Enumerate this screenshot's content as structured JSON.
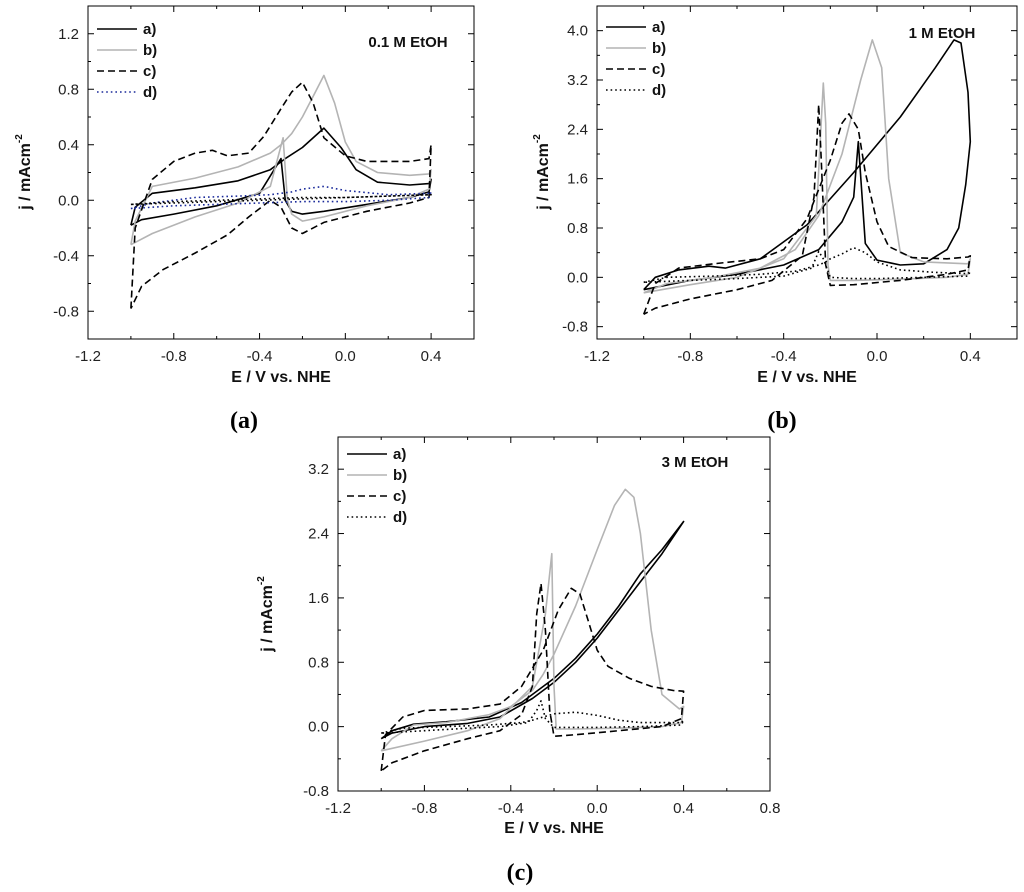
{
  "colors": {
    "black": "#000000",
    "gray": "#b4b4b4",
    "blue": "#1a2a9a"
  },
  "chart_data": [
    {
      "type": "line",
      "caption": "(a)",
      "annotation": "0.1 M EtOH",
      "xlabel": "E / V vs. NHE",
      "ylabel_main": "j /  mAcm",
      "ylabel_sup": "-2",
      "xlim": [
        -1.2,
        0.6
      ],
      "ylim": [
        -1.0,
        1.4
      ],
      "xticks": [
        -1.2,
        -0.8,
        -0.4,
        0.0,
        0.4
      ],
      "xtick_labels": [
        "-1.2",
        "-0.8",
        "-0.4",
        "0.0",
        "0.4"
      ],
      "yticks": [
        -0.8,
        -0.4,
        0.0,
        0.4,
        0.8,
        1.2
      ],
      "ytick_labels": [
        "-0.8",
        "-0.4",
        "0.0",
        "0.4",
        "0.8",
        "1.2"
      ],
      "series": [
        {
          "name": "a)",
          "style": "solid",
          "color": "black",
          "x": [
            -1.0,
            -0.98,
            -0.9,
            -0.7,
            -0.5,
            -0.35,
            -0.28,
            -0.2,
            -0.1,
            -0.02,
            0.05,
            0.15,
            0.3,
            0.39,
            0.4,
            0.39,
            0.3,
            0.1,
            -0.1,
            -0.2,
            -0.25,
            -0.28,
            -0.3,
            -0.4,
            -0.6,
            -0.8,
            -0.95,
            -1.0
          ],
          "y": [
            -0.18,
            -0.05,
            0.05,
            0.09,
            0.14,
            0.22,
            0.3,
            0.38,
            0.52,
            0.38,
            0.22,
            0.13,
            0.11,
            0.12,
            0.15,
            0.06,
            0.02,
            -0.03,
            -0.08,
            -0.1,
            -0.08,
            0.0,
            0.3,
            0.05,
            -0.04,
            -0.1,
            -0.14,
            -0.18
          ]
        },
        {
          "name": "b)",
          "style": "solid",
          "color": "gray",
          "x": [
            -1.0,
            -0.98,
            -0.9,
            -0.7,
            -0.5,
            -0.35,
            -0.3,
            -0.25,
            -0.2,
            -0.15,
            -0.1,
            -0.05,
            0.0,
            0.05,
            0.15,
            0.3,
            0.39,
            0.4,
            0.39,
            0.3,
            0.1,
            -0.1,
            -0.2,
            -0.25,
            -0.27,
            -0.29,
            -0.35,
            -0.5,
            -0.7,
            -0.9,
            -1.0
          ],
          "y": [
            -0.32,
            -0.15,
            0.1,
            0.16,
            0.24,
            0.34,
            0.4,
            0.48,
            0.6,
            0.75,
            0.9,
            0.7,
            0.42,
            0.28,
            0.2,
            0.18,
            0.19,
            0.22,
            0.08,
            0.02,
            -0.04,
            -0.12,
            -0.15,
            -0.1,
            0.0,
            0.45,
            0.1,
            -0.02,
            -0.12,
            -0.24,
            -0.32
          ]
        },
        {
          "name": "c)",
          "style": "dashed",
          "color": "black",
          "x": [
            -1.0,
            -0.98,
            -0.9,
            -0.8,
            -0.7,
            -0.62,
            -0.55,
            -0.45,
            -0.38,
            -0.3,
            -0.25,
            -0.2,
            -0.15,
            -0.1,
            0.0,
            0.1,
            0.3,
            0.39,
            0.4,
            0.39,
            0.3,
            0.1,
            -0.1,
            -0.2,
            -0.25,
            -0.3,
            -0.35,
            -0.45,
            -0.55,
            -0.7,
            -0.85,
            -0.95,
            -1.0
          ],
          "y": [
            -0.78,
            -0.2,
            0.15,
            0.28,
            0.34,
            0.36,
            0.32,
            0.34,
            0.46,
            0.66,
            0.78,
            0.85,
            0.7,
            0.45,
            0.32,
            0.28,
            0.28,
            0.3,
            0.4,
            0.02,
            -0.02,
            -0.08,
            -0.16,
            -0.24,
            -0.2,
            -0.05,
            0.0,
            -0.12,
            -0.25,
            -0.38,
            -0.5,
            -0.62,
            -0.78
          ]
        },
        {
          "name": "d)",
          "style": "dotted",
          "color": "blue",
          "x": [
            -1.0,
            -0.9,
            -0.7,
            -0.5,
            -0.35,
            -0.25,
            -0.2,
            -0.1,
            0.0,
            0.2,
            0.39,
            0.4,
            0.39,
            0.2,
            0.0,
            -0.2,
            -0.4,
            -0.6,
            -0.8,
            -1.0
          ],
          "y": [
            -0.06,
            -0.02,
            0.02,
            0.03,
            0.04,
            0.06,
            0.08,
            0.1,
            0.07,
            0.04,
            0.05,
            0.06,
            0.02,
            0.0,
            -0.01,
            -0.01,
            -0.02,
            -0.03,
            -0.04,
            -0.06
          ]
        },
        {
          "name": "",
          "style": "dotted",
          "color": "black",
          "x": [
            -1.0,
            -0.8,
            -0.6,
            -0.4,
            -0.2,
            0.0,
            0.2,
            0.4,
            0.2,
            0.0,
            -0.2,
            -0.4,
            -0.6,
            -0.8,
            -1.0
          ],
          "y": [
            -0.03,
            -0.01,
            0.0,
            0.01,
            0.02,
            0.02,
            0.03,
            0.04,
            0.03,
            0.02,
            0.01,
            0.0,
            -0.01,
            -0.02,
            -0.03
          ]
        }
      ]
    },
    {
      "type": "line",
      "caption": "(b)",
      "annotation": "1 M EtOH",
      "xlabel": "E / V vs. NHE",
      "ylabel_main": "j /  mAcm",
      "ylabel_sup": "-2",
      "xlim": [
        -1.2,
        0.6
      ],
      "ylim": [
        -1.0,
        4.4
      ],
      "xticks": [
        -1.2,
        -0.8,
        -0.4,
        0.0,
        0.4
      ],
      "xtick_labels": [
        "-1.2",
        "-0.8",
        "-0.4",
        "0.0",
        "0.4"
      ],
      "yticks": [
        -0.8,
        0.0,
        0.8,
        1.6,
        2.4,
        3.2,
        4.0
      ],
      "ytick_labels": [
        "-0.8",
        "0.0",
        "0.8",
        "1.6",
        "2.4",
        "3.2",
        "4.0"
      ],
      "series": [
        {
          "name": "a)",
          "style": "solid",
          "color": "black",
          "x": [
            -1.0,
            -0.95,
            -0.85,
            -0.72,
            -0.65,
            -0.5,
            -0.3,
            -0.1,
            0.1,
            0.25,
            0.33,
            0.36,
            0.39,
            0.4,
            0.38,
            0.35,
            0.3,
            0.2,
            0.1,
            0.0,
            -0.05,
            -0.08,
            -0.1,
            -0.15,
            -0.25,
            -0.4,
            -0.6,
            -0.8,
            -1.0
          ],
          "y": [
            -0.2,
            0.0,
            0.12,
            0.18,
            0.15,
            0.3,
            0.85,
            1.7,
            2.6,
            3.4,
            3.85,
            3.8,
            3.0,
            2.2,
            1.5,
            0.8,
            0.45,
            0.22,
            0.2,
            0.28,
            0.55,
            2.2,
            1.3,
            0.9,
            0.45,
            0.2,
            0.05,
            -0.05,
            -0.2
          ]
        },
        {
          "name": "b)",
          "style": "solid",
          "color": "gray",
          "x": [
            -1.0,
            -0.9,
            -0.7,
            -0.5,
            -0.35,
            -0.25,
            -0.15,
            -0.07,
            -0.02,
            0.02,
            0.05,
            0.1,
            0.2,
            0.39,
            0.4,
            0.39,
            0.3,
            0.1,
            -0.1,
            -0.2,
            -0.21,
            -0.22,
            -0.23,
            -0.26,
            -0.4,
            -0.6,
            -0.8,
            -1.0
          ],
          "y": [
            -0.25,
            -0.1,
            0.0,
            0.15,
            0.45,
            1.0,
            2.0,
            3.2,
            3.85,
            3.4,
            1.6,
            0.4,
            0.25,
            0.22,
            0.3,
            0.05,
            0.0,
            -0.03,
            -0.05,
            -0.05,
            0.2,
            2.5,
            3.15,
            1.0,
            0.3,
            0.0,
            -0.12,
            -0.25
          ]
        },
        {
          "name": "c)",
          "style": "dashed",
          "color": "black",
          "x": [
            -1.0,
            -0.95,
            -0.85,
            -0.7,
            -0.5,
            -0.4,
            -0.3,
            -0.2,
            -0.15,
            -0.12,
            -0.08,
            -0.05,
            0.0,
            0.05,
            0.15,
            0.3,
            0.39,
            0.4,
            0.39,
            0.3,
            0.1,
            -0.1,
            -0.2,
            -0.22,
            -0.24,
            -0.25,
            -0.27,
            -0.32,
            -0.45,
            -0.6,
            -0.8,
            -0.95,
            -1.0
          ],
          "y": [
            -0.6,
            -0.1,
            0.15,
            0.22,
            0.3,
            0.45,
            0.95,
            1.9,
            2.5,
            2.65,
            2.4,
            1.7,
            0.9,
            0.5,
            0.32,
            0.3,
            0.33,
            0.35,
            0.12,
            0.05,
            -0.05,
            -0.12,
            -0.13,
            0.2,
            2.0,
            2.8,
            1.3,
            0.35,
            -0.05,
            -0.2,
            -0.35,
            -0.5,
            -0.6
          ]
        },
        {
          "name": "d)",
          "style": "dotted",
          "color": "black",
          "x": [
            -1.0,
            -0.9,
            -0.7,
            -0.5,
            -0.35,
            -0.25,
            -0.22,
            -0.2,
            -0.15,
            -0.1,
            -0.05,
            0.0,
            0.1,
            0.25,
            0.39,
            0.4,
            0.39,
            0.2,
            0.0,
            -0.1,
            -0.2,
            -0.23,
            -0.25,
            -0.28,
            -0.4,
            -0.6,
            -0.8,
            -1.0
          ],
          "y": [
            -0.08,
            0.0,
            0.02,
            0.05,
            0.1,
            0.2,
            0.25,
            0.3,
            0.38,
            0.48,
            0.4,
            0.25,
            0.12,
            0.08,
            0.06,
            0.1,
            0.02,
            0.0,
            -0.02,
            -0.02,
            0.0,
            0.3,
            0.42,
            0.15,
            0.02,
            -0.02,
            -0.05,
            -0.08
          ]
        }
      ]
    },
    {
      "type": "line",
      "caption": "(c)",
      "annotation": "3 M EtOH",
      "xlabel": "E / V vs. NHE",
      "ylabel_main": "j /  mAcm",
      "ylabel_sup": "-2",
      "xlim": [
        -1.2,
        0.8
      ],
      "ylim": [
        -0.8,
        3.6
      ],
      "xticks": [
        -1.2,
        -0.8,
        -0.4,
        0.0,
        0.4,
        0.8
      ],
      "xtick_labels": [
        "-1.2",
        "-0.8",
        "-0.4",
        "0.0",
        "0.4",
        "0.8"
      ],
      "yticks": [
        -0.8,
        0.0,
        0.8,
        1.6,
        2.4,
        3.2
      ],
      "ytick_labels": [
        "-0.8",
        "0.0",
        "0.8",
        "1.6",
        "2.4",
        "3.2"
      ],
      "series": [
        {
          "name": "a)",
          "style": "solid",
          "color": "black",
          "x": [
            -1.0,
            -0.95,
            -0.85,
            -0.7,
            -0.5,
            -0.35,
            -0.2,
            -0.1,
            0.0,
            0.1,
            0.2,
            0.3,
            0.4,
            0.3,
            0.2,
            0.1,
            0.0,
            -0.1,
            -0.2,
            -0.3,
            -0.45,
            -0.6,
            -0.8,
            -0.95,
            -1.0
          ],
          "y": [
            -0.15,
            -0.05,
            0.03,
            0.06,
            0.12,
            0.3,
            0.6,
            0.85,
            1.15,
            1.5,
            1.9,
            2.2,
            2.55,
            2.15,
            1.8,
            1.45,
            1.1,
            0.8,
            0.55,
            0.35,
            0.12,
            0.04,
            0.0,
            -0.08,
            -0.15
          ]
        },
        {
          "name": "b)",
          "style": "solid",
          "color": "gray",
          "x": [
            -1.0,
            -0.95,
            -0.85,
            -0.7,
            -0.5,
            -0.4,
            -0.3,
            -0.25,
            -0.2,
            -0.1,
            0.0,
            0.08,
            0.13,
            0.17,
            0.2,
            0.25,
            0.3,
            0.38,
            0.4,
            0.39,
            0.3,
            0.1,
            -0.1,
            -0.19,
            -0.2,
            -0.21,
            -0.24,
            -0.3,
            -0.45,
            -0.6,
            -0.8,
            -1.0
          ],
          "y": [
            -0.3,
            -0.15,
            0.02,
            0.05,
            0.15,
            0.25,
            0.45,
            0.65,
            0.9,
            1.5,
            2.2,
            2.75,
            2.95,
            2.85,
            2.4,
            1.2,
            0.4,
            0.22,
            0.25,
            0.05,
            0.0,
            -0.02,
            -0.03,
            -0.03,
            0.5,
            2.15,
            1.4,
            0.5,
            0.1,
            -0.05,
            -0.18,
            -0.3
          ]
        },
        {
          "name": "c)",
          "style": "dashed",
          "color": "black",
          "x": [
            -1.0,
            -0.98,
            -0.9,
            -0.8,
            -0.6,
            -0.45,
            -0.35,
            -0.25,
            -0.18,
            -0.12,
            -0.08,
            -0.04,
            0.0,
            0.05,
            0.15,
            0.25,
            0.35,
            0.4,
            0.39,
            0.3,
            0.1,
            -0.1,
            -0.2,
            -0.22,
            -0.24,
            -0.26,
            -0.28,
            -0.3,
            -0.35,
            -0.45,
            -0.6,
            -0.8,
            -0.95,
            -1.0
          ],
          "y": [
            -0.55,
            -0.1,
            0.12,
            0.2,
            0.22,
            0.28,
            0.5,
            0.95,
            1.45,
            1.72,
            1.65,
            1.3,
            0.95,
            0.75,
            0.6,
            0.5,
            0.45,
            0.44,
            0.1,
            0.0,
            -0.05,
            -0.1,
            -0.12,
            0.2,
            1.2,
            1.78,
            1.4,
            0.5,
            0.15,
            -0.05,
            -0.15,
            -0.3,
            -0.45,
            -0.55
          ]
        },
        {
          "name": "d)",
          "style": "dotted",
          "color": "black",
          "x": [
            -1.0,
            -0.9,
            -0.7,
            -0.5,
            -0.35,
            -0.3,
            -0.25,
            -0.2,
            -0.1,
            0.0,
            0.1,
            0.2,
            0.39,
            0.4,
            0.39,
            0.2,
            0.0,
            -0.2,
            -0.24,
            -0.26,
            -0.28,
            -0.32,
            -0.45,
            -0.6,
            -0.8,
            -1.0
          ],
          "y": [
            -0.08,
            -0.02,
            0.0,
            0.02,
            0.05,
            0.08,
            0.12,
            0.16,
            0.18,
            0.14,
            0.08,
            0.05,
            0.05,
            0.08,
            0.02,
            0.0,
            -0.01,
            -0.01,
            0.1,
            0.32,
            0.2,
            0.05,
            0.0,
            -0.02,
            -0.05,
            -0.08
          ]
        }
      ]
    }
  ]
}
